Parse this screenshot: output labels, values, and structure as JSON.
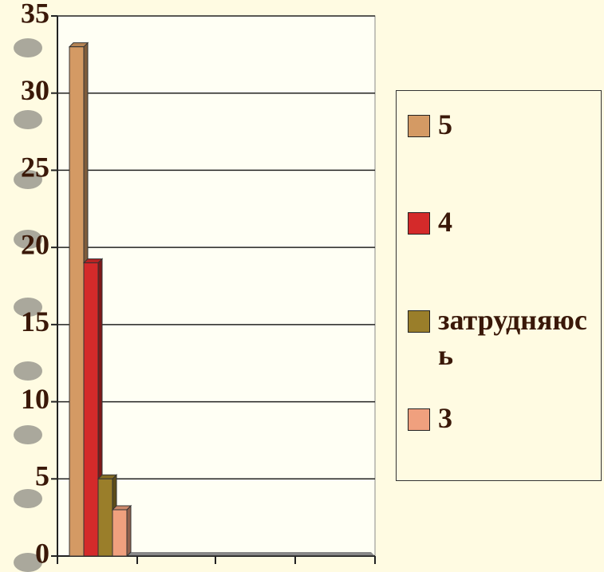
{
  "chart_data": {
    "type": "bar",
    "categories": [
      null
    ],
    "series": [
      {
        "name": "5",
        "color": "#d49a64",
        "values": [
          33
        ]
      },
      {
        "name": "4",
        "color": "#d42a2a",
        "values": [
          19
        ]
      },
      {
        "name": "затрудняюсь",
        "color": "#9a7e2a",
        "values": [
          5
        ]
      },
      {
        "name": "3",
        "color": "#f0a07e",
        "values": [
          3
        ]
      }
    ],
    "ylim": [
      0,
      35
    ],
    "yticks": [
      0,
      5,
      10,
      15,
      20,
      25,
      30,
      35
    ],
    "grid": true,
    "legend": "right"
  }
}
